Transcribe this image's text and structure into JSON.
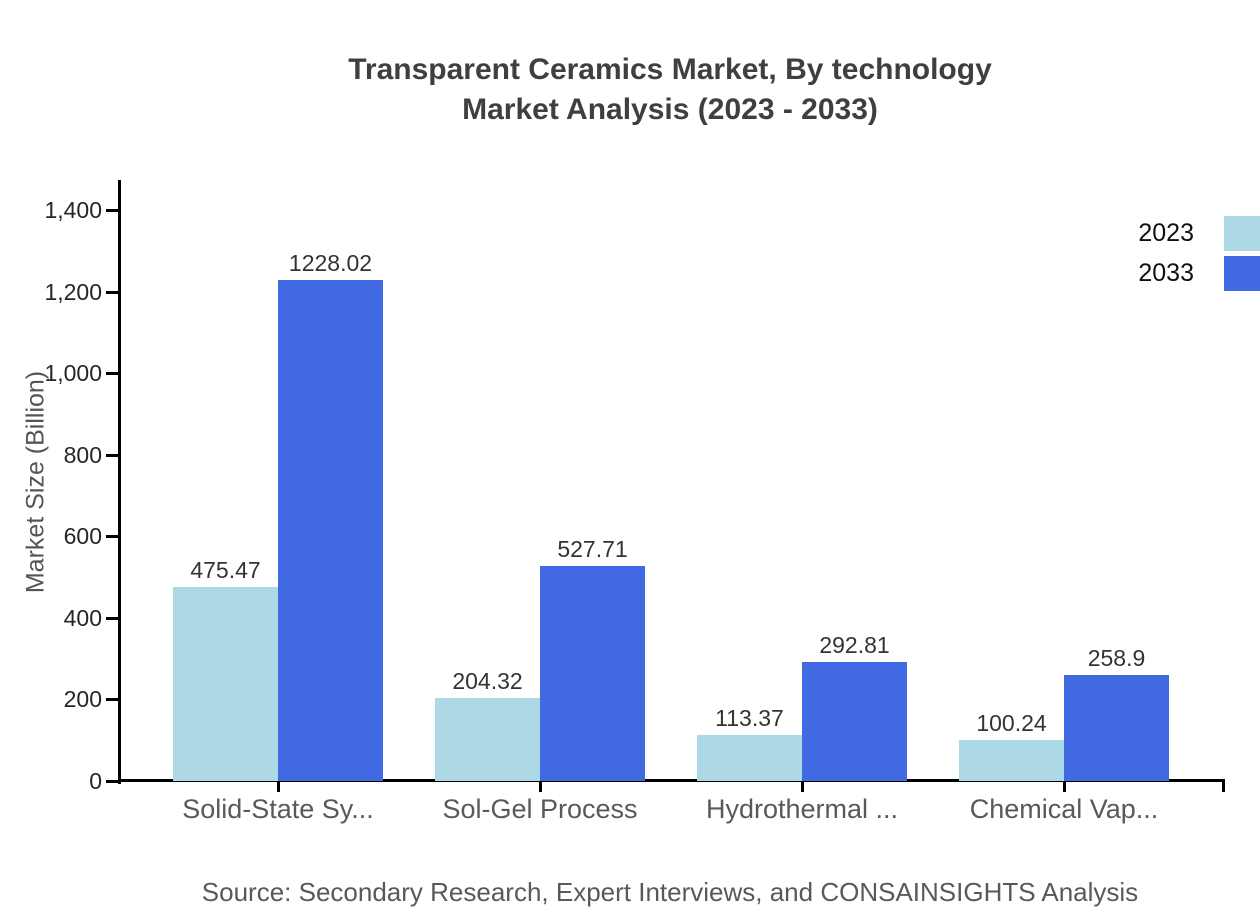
{
  "page": {
    "background": "#ffffff"
  },
  "chart_data": {
    "type": "bar",
    "title": "Transparent Ceramics Market, By technology",
    "subtitle": "Market Analysis (2023 - 2033)",
    "categories": [
      "Solid-State Sy...",
      "Sol-Gel Process",
      "Hydrothermal ...",
      "Chemical Vap..."
    ],
    "series": [
      {
        "name": "2023",
        "color": "#ADD8E6",
        "values": [
          475.47,
          204.32,
          113.37,
          100.24
        ],
        "labels": [
          "475.47",
          "204.32",
          "113.37",
          "100.24"
        ]
      },
      {
        "name": "2033",
        "color": "#4169E1",
        "values": [
          1228.02,
          527.71,
          292.81,
          258.9
        ],
        "labels": [
          "1228.02",
          "527.71",
          "292.81",
          "258.9"
        ]
      }
    ],
    "xlabel": "",
    "ylabel": "Market Size (Billion)",
    "ylim": [
      0,
      1400
    ],
    "yticks": [
      0,
      200,
      400,
      600,
      800,
      1000,
      1200,
      1400
    ],
    "ytick_labels": [
      "0",
      "200",
      "400",
      "600",
      "800",
      "1,000",
      "1,200",
      "1,400"
    ],
    "grid": false,
    "legend_position": "top-right"
  },
  "footer": {
    "source": "Source: Secondary Research, Expert Interviews, and CONSAINSIGHTS Analysis"
  },
  "colors": {
    "axis": "#000000",
    "title_text": "#3f3f3f",
    "tick_text": "#262626",
    "category_text": "#595959",
    "value_text": "#333333",
    "ylabel_text": "#555555",
    "legend_text": "#111111",
    "source_text": "#595959",
    "background": "#ffffff"
  }
}
